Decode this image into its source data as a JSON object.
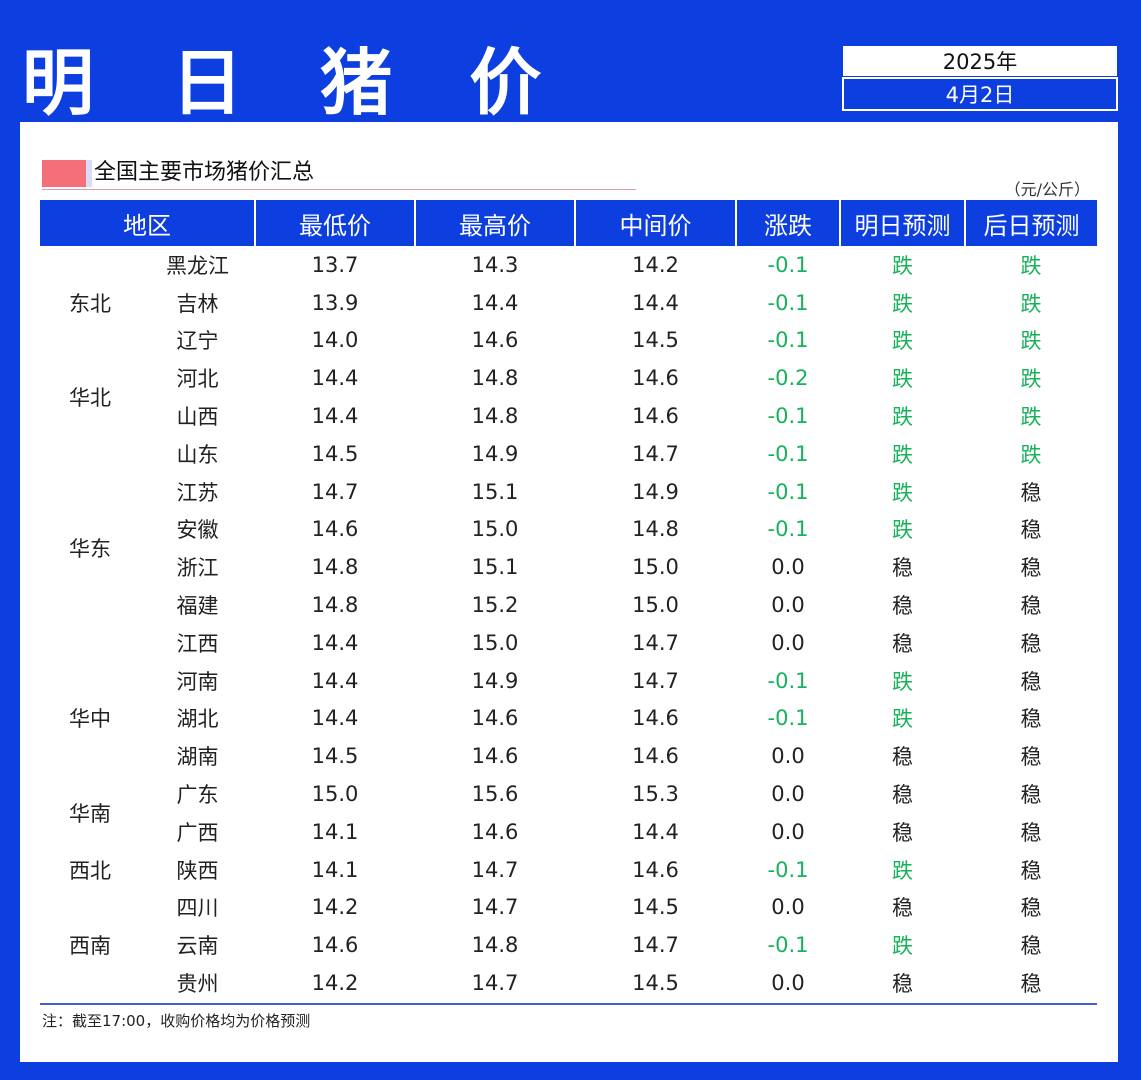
{
  "header": {
    "title": "明 日 猪 价",
    "year": "2025年",
    "date": "4月2日"
  },
  "section": {
    "title": "全国主要市场猪价汇总",
    "unit": "（元/公斤）"
  },
  "table": {
    "columns": [
      "地区",
      "最低价",
      "最高价",
      "中间价",
      "涨跌",
      "明日预测",
      "后日预测"
    ],
    "groups": [
      {
        "region": "东北",
        "span": 3
      },
      {
        "region": "华北",
        "span": 2
      },
      {
        "region": "华东",
        "span": 6
      },
      {
        "region": "华中",
        "span": 3
      },
      {
        "region": "华南",
        "span": 2
      },
      {
        "region": "西北",
        "span": 1
      },
      {
        "region": "西南",
        "span": 3
      }
    ],
    "rows": [
      {
        "province": "黑龙江",
        "low": "13.7",
        "high": "14.3",
        "mid": "14.2",
        "change": "-0.1",
        "tomorrow": "跌",
        "dayafter": "跌"
      },
      {
        "province": "吉林",
        "low": "13.9",
        "high": "14.4",
        "mid": "14.4",
        "change": "-0.1",
        "tomorrow": "跌",
        "dayafter": "跌"
      },
      {
        "province": "辽宁",
        "low": "14.0",
        "high": "14.6",
        "mid": "14.5",
        "change": "-0.1",
        "tomorrow": "跌",
        "dayafter": "跌"
      },
      {
        "province": "河北",
        "low": "14.4",
        "high": "14.8",
        "mid": "14.6",
        "change": "-0.2",
        "tomorrow": "跌",
        "dayafter": "跌"
      },
      {
        "province": "山西",
        "low": "14.4",
        "high": "14.8",
        "mid": "14.6",
        "change": "-0.1",
        "tomorrow": "跌",
        "dayafter": "跌"
      },
      {
        "province": "山东",
        "low": "14.5",
        "high": "14.9",
        "mid": "14.7",
        "change": "-0.1",
        "tomorrow": "跌",
        "dayafter": "跌"
      },
      {
        "province": "江苏",
        "low": "14.7",
        "high": "15.1",
        "mid": "14.9",
        "change": "-0.1",
        "tomorrow": "跌",
        "dayafter": "稳"
      },
      {
        "province": "安徽",
        "low": "14.6",
        "high": "15.0",
        "mid": "14.8",
        "change": "-0.1",
        "tomorrow": "跌",
        "dayafter": "稳"
      },
      {
        "province": "浙江",
        "low": "14.8",
        "high": "15.1",
        "mid": "15.0",
        "change": "0.0",
        "tomorrow": "稳",
        "dayafter": "稳"
      },
      {
        "province": "福建",
        "low": "14.8",
        "high": "15.2",
        "mid": "15.0",
        "change": "0.0",
        "tomorrow": "稳",
        "dayafter": "稳"
      },
      {
        "province": "江西",
        "low": "14.4",
        "high": "15.0",
        "mid": "14.7",
        "change": "0.0",
        "tomorrow": "稳",
        "dayafter": "稳"
      },
      {
        "province": "河南",
        "low": "14.4",
        "high": "14.9",
        "mid": "14.7",
        "change": "-0.1",
        "tomorrow": "跌",
        "dayafter": "稳"
      },
      {
        "province": "湖北",
        "low": "14.4",
        "high": "14.6",
        "mid": "14.6",
        "change": "-0.1",
        "tomorrow": "跌",
        "dayafter": "稳"
      },
      {
        "province": "湖南",
        "low": "14.5",
        "high": "14.6",
        "mid": "14.6",
        "change": "0.0",
        "tomorrow": "稳",
        "dayafter": "稳"
      },
      {
        "province": "广东",
        "low": "15.0",
        "high": "15.6",
        "mid": "15.3",
        "change": "0.0",
        "tomorrow": "稳",
        "dayafter": "稳"
      },
      {
        "province": "广西",
        "low": "14.1",
        "high": "14.6",
        "mid": "14.4",
        "change": "0.0",
        "tomorrow": "稳",
        "dayafter": "稳"
      },
      {
        "province": "陕西",
        "low": "14.1",
        "high": "14.7",
        "mid": "14.6",
        "change": "-0.1",
        "tomorrow": "跌",
        "dayafter": "稳"
      },
      {
        "province": "四川",
        "low": "14.2",
        "high": "14.7",
        "mid": "14.5",
        "change": "0.0",
        "tomorrow": "稳",
        "dayafter": "稳"
      },
      {
        "province": "云南",
        "low": "14.6",
        "high": "14.8",
        "mid": "14.7",
        "change": "-0.1",
        "tomorrow": "跌",
        "dayafter": "稳"
      },
      {
        "province": "贵州",
        "low": "14.2",
        "high": "14.7",
        "mid": "14.5",
        "change": "0.0",
        "tomorrow": "稳",
        "dayafter": "稳"
      }
    ]
  },
  "footer": {
    "note": "注：截至17:00，收购价格均为价格预测"
  },
  "colors": {
    "brand_blue": "#0d3fe0",
    "down_green": "#17b25a",
    "accent_pink": "#f46f7a"
  }
}
